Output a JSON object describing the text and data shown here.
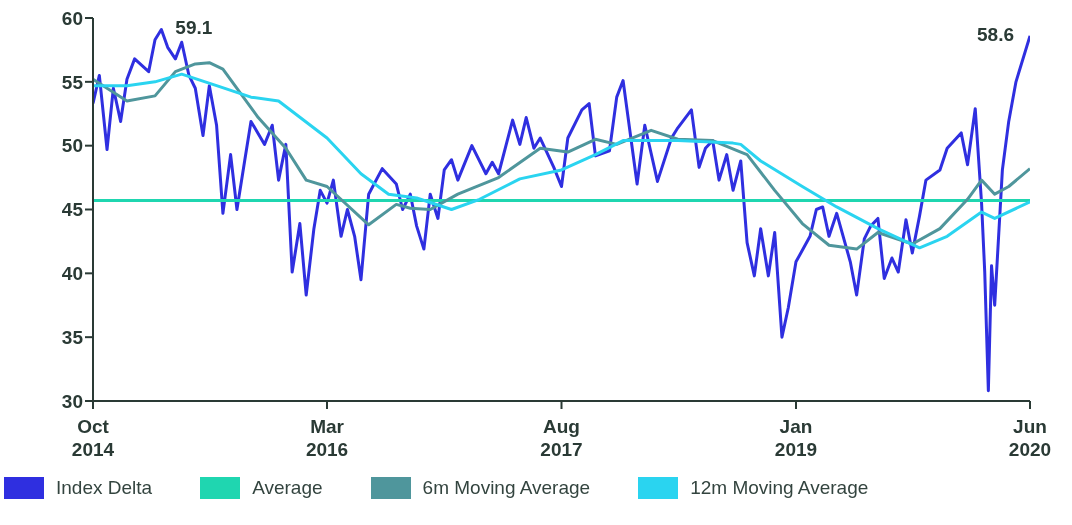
{
  "chart_data": {
    "type": "line",
    "xlim": [
      "2014-10-01",
      "2020-06-01"
    ],
    "xticks": [
      {
        "value": "2014-10-01",
        "label": "Oct 2014"
      },
      {
        "value": "2016-03-01",
        "label": "Mar 2016"
      },
      {
        "value": "2017-08-01",
        "label": "Aug 2017"
      },
      {
        "value": "2019-01-01",
        "label": "Jan 2019"
      },
      {
        "value": "2020-06-01",
        "label": "Jun 2020"
      }
    ],
    "ylim": [
      30,
      60
    ],
    "yticks": [
      30,
      35,
      40,
      45,
      50,
      55,
      60
    ],
    "legend": "bottom",
    "marker": "none",
    "line_style": "solid",
    "annotations": [
      {
        "text": "59.1",
        "x": "2015-03-01",
        "y": 59.1
      },
      {
        "text": "58.6",
        "x": "2020-06-01",
        "y": 58.6
      }
    ],
    "series": [
      {
        "name": "Index Delta",
        "color": "#2f2fe0",
        "x": [
          "2014-10-01",
          "2014-10-15",
          "2014-11-01",
          "2014-11-15",
          "2014-12-01",
          "2014-12-15",
          "2015-01-01",
          "2015-02-01",
          "2015-02-15",
          "2015-03-01",
          "2015-03-15",
          "2015-04-01",
          "2015-04-15",
          "2015-05-01",
          "2015-05-15",
          "2015-06-01",
          "2015-06-15",
          "2015-07-01",
          "2015-07-15",
          "2015-08-01",
          "2015-08-15",
          "2015-09-01",
          "2015-09-15",
          "2015-10-15",
          "2015-11-01",
          "2015-11-15",
          "2015-12-01",
          "2015-12-15",
          "2016-01-01",
          "2016-01-15",
          "2016-02-01",
          "2016-02-15",
          "2016-03-01",
          "2016-03-15",
          "2016-04-01",
          "2016-04-15",
          "2016-05-01",
          "2016-05-15",
          "2016-06-01",
          "2016-07-01",
          "2016-08-01",
          "2016-08-15",
          "2016-09-01",
          "2016-09-15",
          "2016-10-01",
          "2016-10-15",
          "2016-11-01",
          "2016-11-15",
          "2016-12-01",
          "2016-12-15",
          "2017-01-15",
          "2017-02-15",
          "2017-03-01",
          "2017-03-15",
          "2017-04-15",
          "2017-05-01",
          "2017-05-15",
          "2017-06-01",
          "2017-06-15",
          "2017-07-15",
          "2017-08-01",
          "2017-08-15",
          "2017-09-15",
          "2017-10-01",
          "2017-10-15",
          "2017-11-15",
          "2017-12-01",
          "2017-12-15",
          "2018-01-15",
          "2018-02-01",
          "2018-03-01",
          "2018-04-01",
          "2018-04-15",
          "2018-05-15",
          "2018-06-01",
          "2018-06-15",
          "2018-07-01",
          "2018-07-15",
          "2018-08-01",
          "2018-08-15",
          "2018-09-01",
          "2018-09-15",
          "2018-10-01",
          "2018-10-15",
          "2018-11-01",
          "2018-11-15",
          "2018-12-01",
          "2018-12-15",
          "2019-01-01",
          "2019-02-01",
          "2019-02-15",
          "2019-03-01",
          "2019-03-15",
          "2019-04-01",
          "2019-05-01",
          "2019-05-15",
          "2019-06-01",
          "2019-06-15",
          "2019-07-01",
          "2019-07-15",
          "2019-08-01",
          "2019-08-15",
          "2019-09-01",
          "2019-09-15",
          "2019-10-01",
          "2019-10-15",
          "2019-11-15",
          "2019-12-01",
          "2020-01-01",
          "2020-01-15",
          "2020-02-01",
          "2020-02-15",
          "2020-02-22",
          "2020-03-01",
          "2020-03-08",
          "2020-03-15",
          "2020-04-01",
          "2020-04-15",
          "2020-05-01",
          "2020-06-01"
        ],
        "values": [
          53.3,
          55.5,
          49.7,
          54.5,
          51.9,
          55.2,
          56.8,
          55.8,
          58.3,
          59.1,
          57.7,
          56.8,
          58.1,
          55.5,
          54.5,
          50.8,
          54.7,
          51.6,
          44.7,
          49.3,
          45.0,
          48.8,
          51.9,
          50.1,
          51.6,
          47.3,
          50.1,
          40.1,
          43.9,
          38.3,
          43.5,
          46.5,
          45.5,
          47.3,
          42.9,
          45.0,
          42.9,
          39.5,
          46.2,
          48.2,
          47.0,
          45.0,
          46.2,
          43.7,
          41.9,
          46.2,
          44.3,
          48.1,
          48.9,
          47.3,
          50.0,
          47.8,
          48.7,
          47.8,
          52.0,
          50.1,
          52.2,
          49.8,
          50.6,
          48.3,
          46.8,
          50.6,
          52.8,
          53.3,
          49.2,
          49.6,
          53.8,
          55.1,
          47.0,
          51.6,
          47.2,
          50.6,
          51.4,
          52.8,
          48.3,
          49.8,
          50.4,
          47.3,
          49.3,
          46.5,
          48.8,
          42.4,
          39.8,
          43.5,
          39.8,
          43.2,
          35.0,
          37.3,
          40.9,
          42.9,
          45.0,
          45.2,
          42.9,
          44.7,
          40.9,
          38.3,
          42.7,
          43.7,
          44.3,
          39.6,
          41.2,
          40.1,
          44.2,
          41.6,
          44.5,
          47.3,
          48.1,
          49.8,
          51.0,
          48.5,
          52.9,
          45.5,
          40.1,
          30.8,
          40.6,
          37.5,
          48.1,
          51.9,
          55.0,
          58.6
        ]
      },
      {
        "name": "Average",
        "color": "#1fd6b0",
        "x": [
          "2014-10-01",
          "2020-06-01"
        ],
        "values": [
          45.7,
          45.7
        ]
      },
      {
        "name": "6m Moving Average",
        "color": "#4f969c",
        "x": [
          "2014-10-01",
          "2014-12-15",
          "2015-02-15",
          "2015-04-01",
          "2015-05-15",
          "2015-06-15",
          "2015-07-15",
          "2015-10-01",
          "2015-12-01",
          "2016-01-15",
          "2016-03-01",
          "2016-06-01",
          "2016-08-01",
          "2016-09-01",
          "2016-10-15",
          "2016-12-15",
          "2017-03-15",
          "2017-06-15",
          "2017-08-15",
          "2017-10-15",
          "2017-12-01",
          "2018-02-15",
          "2018-04-15",
          "2018-07-01",
          "2018-09-01",
          "2018-09-15",
          "2018-11-15",
          "2019-01-15",
          "2019-03-15",
          "2019-05-15",
          "2019-07-01",
          "2019-09-15",
          "2019-11-15",
          "2020-01-15",
          "2020-02-15",
          "2020-03-15",
          "2020-04-15",
          "2020-06-01"
        ],
        "values": [
          55.2,
          53.5,
          53.9,
          55.8,
          56.4,
          56.5,
          56.0,
          52.2,
          49.8,
          47.3,
          46.8,
          43.8,
          45.4,
          45.1,
          45.0,
          46.2,
          47.5,
          49.8,
          49.5,
          50.5,
          50.1,
          51.2,
          50.5,
          50.4,
          49.5,
          49.3,
          46.5,
          43.9,
          42.2,
          41.9,
          43.2,
          42.3,
          43.5,
          45.8,
          47.3,
          46.2,
          46.8,
          48.2
        ]
      },
      {
        "name": "12m Moving Average",
        "color": "#2ad4f0",
        "x": [
          "2014-10-01",
          "2014-12-15",
          "2015-02-15",
          "2015-04-15",
          "2015-07-01",
          "2015-09-15",
          "2015-11-15",
          "2016-03-01",
          "2016-05-15",
          "2016-07-15",
          "2016-09-15",
          "2016-12-01",
          "2017-02-01",
          "2017-05-01",
          "2017-08-01",
          "2017-10-15",
          "2017-12-15",
          "2018-04-15",
          "2018-08-15",
          "2018-09-01",
          "2018-10-15",
          "2019-01-15",
          "2019-04-01",
          "2019-07-01",
          "2019-10-01",
          "2019-12-01",
          "2020-02-15",
          "2020-03-15",
          "2020-06-01"
        ],
        "values": [
          54.7,
          54.7,
          55.0,
          55.6,
          54.7,
          53.8,
          53.5,
          50.6,
          47.8,
          46.2,
          45.9,
          45.0,
          45.8,
          47.4,
          48.1,
          49.3,
          50.4,
          50.4,
          50.2,
          50.1,
          48.8,
          46.8,
          45.2,
          43.5,
          42.0,
          42.9,
          44.8,
          44.3,
          45.6
        ]
      }
    ]
  }
}
